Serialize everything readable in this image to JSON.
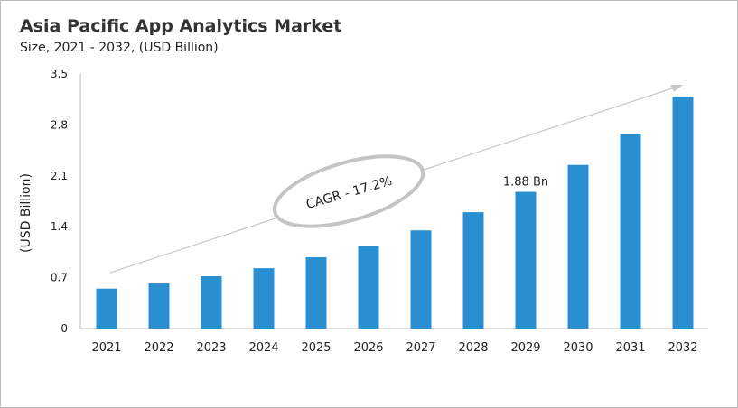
{
  "chart_data": {
    "type": "bar",
    "title": "Asia Pacific App Analytics Market",
    "subtitle": "Size, 2021 - 2032, (USD Billion)",
    "xlabel": "",
    "ylabel": "(USD Billion)",
    "categories": [
      "2021",
      "2022",
      "2023",
      "2024",
      "2025",
      "2026",
      "2027",
      "2028",
      "2029",
      "2030",
      "2031",
      "2032"
    ],
    "values": [
      0.55,
      0.62,
      0.72,
      0.83,
      0.98,
      1.14,
      1.35,
      1.6,
      1.88,
      2.25,
      2.68,
      3.19
    ],
    "ylim": [
      0,
      3.5
    ],
    "yticks": [
      "0",
      "0.7",
      "1.4",
      "2.1",
      "2.8",
      "3.5"
    ],
    "data_labels": [
      {
        "category": "2029",
        "text": "1.88 Bn"
      }
    ],
    "annotation": "CAGR - 17.2%",
    "grid": false,
    "bar_color": "#2a8fd0"
  }
}
